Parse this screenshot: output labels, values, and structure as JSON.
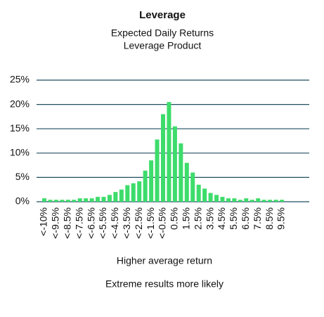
{
  "chart_data": {
    "type": "bar",
    "title": "Leverage",
    "subtitle": [
      "Expected Daily Returns",
      "Leverage Product"
    ],
    "annotations": [
      "Higher average return",
      "Extreme results more likely"
    ],
    "categories": [
      "<-10%",
      null,
      "<-9.5%",
      null,
      "<-8.5%",
      null,
      "<-7.5%",
      null,
      "<-6.5%",
      null,
      "<-5.5%",
      null,
      "<-4.5%",
      null,
      "<-3.5%",
      null,
      "<-2.5%",
      null,
      "<-1.5%",
      null,
      "<-0.5%",
      null,
      "0.5%",
      null,
      "1.5%",
      null,
      "2.5%",
      null,
      "3.5%",
      null,
      "4.5%",
      null,
      "5.5%",
      null,
      "6.5%",
      null,
      "7.5%",
      null,
      "8.5%",
      null,
      "9.5%"
    ],
    "values": [
      0.7,
      0.4,
      0.4,
      0.4,
      0.4,
      0.4,
      0.7,
      0.7,
      0.7,
      1.0,
      1.0,
      1.4,
      2.0,
      2.5,
      3.4,
      3.8,
      4.2,
      6.4,
      8.5,
      12.8,
      18.0,
      20.5,
      15.5,
      12.0,
      8.0,
      6.0,
      3.5,
      2.7,
      1.8,
      1.4,
      1.0,
      0.7,
      0.7,
      0.4,
      0.7,
      0.4,
      0.7,
      0.4,
      0.4,
      0.4,
      0.4
    ],
    "color": "#3ddc6b",
    "ylim": [
      0,
      25
    ],
    "yticks": [
      {
        "value": 0,
        "label": "0%"
      },
      {
        "value": 5,
        "label": "5%"
      },
      {
        "value": 10,
        "label": "10%"
      },
      {
        "value": 15,
        "label": "15%"
      },
      {
        "value": 20,
        "label": "20%"
      },
      {
        "value": 25,
        "label": "25%"
      }
    ],
    "grid": true
  }
}
